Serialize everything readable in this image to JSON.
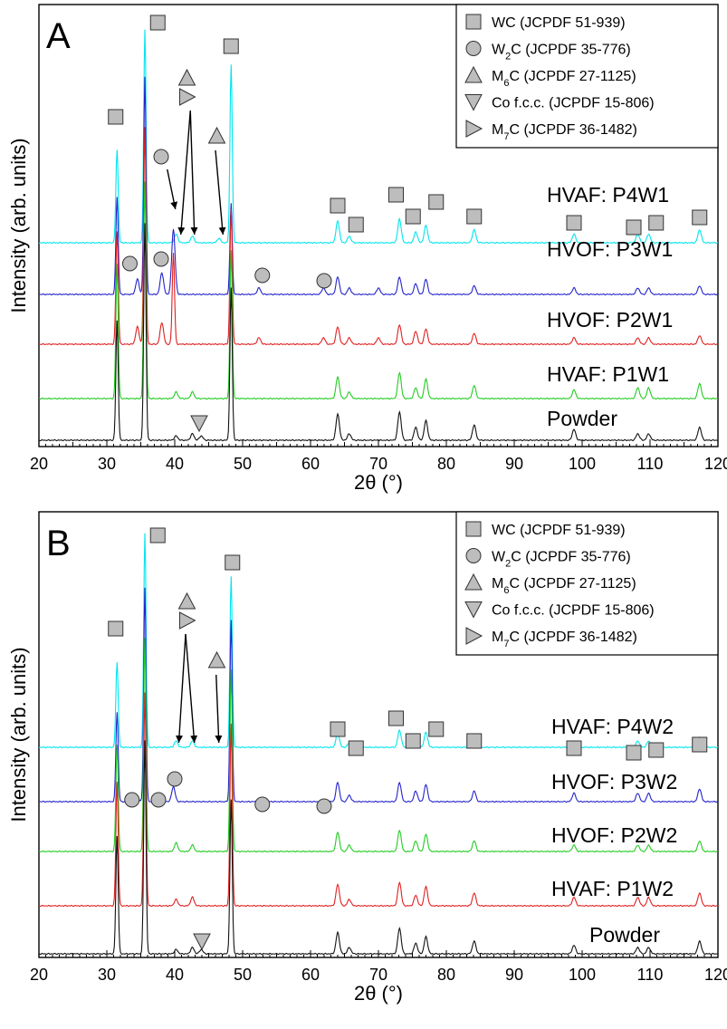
{
  "chart_data": [
    {
      "type": "line",
      "panel_label": "A",
      "xlabel": "2θ (°)",
      "ylabel": "Intensity (arb. units)",
      "xlim": [
        20,
        120
      ],
      "x_ticks": [
        20,
        30,
        40,
        50,
        60,
        70,
        80,
        90,
        100,
        110,
        120
      ],
      "series": [
        {
          "name": "HVAF: P4W1",
          "color": "#00e5ee",
          "peaks": [
            [
              31.5,
              0.43
            ],
            [
              35.6,
              0.98
            ],
            [
              40.2,
              0.04
            ],
            [
              42.6,
              0.03
            ],
            [
              46.5,
              0.02
            ],
            [
              48.3,
              0.82
            ],
            [
              64.0,
              0.1
            ],
            [
              65.7,
              0.03
            ],
            [
              73.1,
              0.11
            ],
            [
              75.5,
              0.05
            ],
            [
              77.0,
              0.08
            ],
            [
              84.1,
              0.06
            ],
            [
              98.8,
              0.04
            ],
            [
              108.2,
              0.04
            ],
            [
              109.8,
              0.04
            ],
            [
              117.3,
              0.06
            ]
          ]
        },
        {
          "name": "HVOF: P3W1",
          "color": "#2323cc",
          "peaks": [
            [
              31.5,
              0.45
            ],
            [
              34.5,
              0.07
            ],
            [
              35.6,
              1.0
            ],
            [
              38.1,
              0.1
            ],
            [
              39.8,
              0.3
            ],
            [
              48.3,
              0.42
            ],
            [
              52.4,
              0.03
            ],
            [
              61.9,
              0.03
            ],
            [
              64.0,
              0.08
            ],
            [
              65.7,
              0.03
            ],
            [
              70.0,
              0.03
            ],
            [
              73.1,
              0.08
            ],
            [
              75.5,
              0.05
            ],
            [
              77.0,
              0.07
            ],
            [
              84.1,
              0.04
            ],
            [
              98.8,
              0.03
            ],
            [
              108.2,
              0.03
            ],
            [
              109.8,
              0.03
            ],
            [
              117.3,
              0.04
            ]
          ]
        },
        {
          "name": "HVOF: P2W1",
          "color": "#e02020",
          "peaks": [
            [
              31.5,
              0.52
            ],
            [
              34.5,
              0.08
            ],
            [
              35.6,
              1.0
            ],
            [
              38.1,
              0.1
            ],
            [
              39.8,
              0.42
            ],
            [
              48.3,
              0.62
            ],
            [
              52.4,
              0.03
            ],
            [
              61.9,
              0.03
            ],
            [
              64.0,
              0.08
            ],
            [
              65.7,
              0.03
            ],
            [
              70.0,
              0.03
            ],
            [
              73.1,
              0.09
            ],
            [
              75.5,
              0.06
            ],
            [
              77.0,
              0.07
            ],
            [
              84.1,
              0.05
            ],
            [
              98.8,
              0.03
            ],
            [
              108.2,
              0.03
            ],
            [
              109.8,
              0.03
            ],
            [
              117.3,
              0.04
            ]
          ]
        },
        {
          "name": "HVAF: P1W1",
          "color": "#22cc22",
          "peaks": [
            [
              31.5,
              0.62
            ],
            [
              35.6,
              1.0
            ],
            [
              40.2,
              0.03
            ],
            [
              42.6,
              0.03
            ],
            [
              48.3,
              0.68
            ],
            [
              64.0,
              0.1
            ],
            [
              65.7,
              0.03
            ],
            [
              73.1,
              0.12
            ],
            [
              75.5,
              0.05
            ],
            [
              77.0,
              0.09
            ],
            [
              84.1,
              0.06
            ],
            [
              98.8,
              0.04
            ],
            [
              108.2,
              0.05
            ],
            [
              109.8,
              0.05
            ],
            [
              117.3,
              0.07
            ]
          ]
        },
        {
          "name": "Powder",
          "color": "#111111",
          "peaks": [
            [
              31.5,
              0.55
            ],
            [
              35.6,
              1.0
            ],
            [
              40.2,
              0.02
            ],
            [
              42.6,
              0.03
            ],
            [
              43.9,
              0.02
            ],
            [
              48.3,
              0.7
            ],
            [
              64.0,
              0.12
            ],
            [
              65.7,
              0.03
            ],
            [
              73.1,
              0.13
            ],
            [
              75.5,
              0.06
            ],
            [
              77.0,
              0.09
            ],
            [
              84.1,
              0.07
            ],
            [
              98.8,
              0.05
            ],
            [
              108.2,
              0.03
            ],
            [
              109.8,
              0.03
            ],
            [
              117.3,
              0.06
            ]
          ]
        }
      ],
      "legend": [
        {
          "symbol": "square",
          "label": "WC",
          "label_sub": "",
          "label_rest": "  (JCPDF 51-939)"
        },
        {
          "symbol": "circle",
          "label": "W",
          "label_sub": "2",
          "label_rest": "C (JCPDF 35-776)"
        },
        {
          "symbol": "triangle-up",
          "label": "M",
          "label_sub": "6",
          "label_rest": "C (JCPDF 27-1125)"
        },
        {
          "symbol": "triangle-down",
          "label": "Co f.c.c. (JCPDF 15-806)",
          "label_sub": "",
          "label_rest": ""
        },
        {
          "symbol": "triangle-right",
          "label": "M",
          "label_sub": "7",
          "label_rest": "C (JCPDF 36-1482)"
        }
      ],
      "legend_position": "top-right"
    },
    {
      "type": "line",
      "panel_label": "B",
      "xlabel": "2θ (°)",
      "ylabel": "Intensity (arb. units)",
      "xlim": [
        20,
        120
      ],
      "x_ticks": [
        20,
        30,
        40,
        50,
        60,
        70,
        80,
        90,
        100,
        110,
        120
      ],
      "series": [
        {
          "name": "HVAF: P4W2",
          "color": "#00e5ee",
          "peaks": [
            [
              31.5,
              0.4
            ],
            [
              35.6,
              1.0
            ],
            [
              40.2,
              0.03
            ],
            [
              42.6,
              0.03
            ],
            [
              48.3,
              0.8
            ],
            [
              64.0,
              0.07
            ],
            [
              65.7,
              0.02
            ],
            [
              73.1,
              0.08
            ],
            [
              75.5,
              0.04
            ],
            [
              77.0,
              0.07
            ],
            [
              84.1,
              0.04
            ],
            [
              98.8,
              0.02
            ],
            [
              108.2,
              0.03
            ],
            [
              109.8,
              0.03
            ],
            [
              117.3,
              0.05
            ]
          ]
        },
        {
          "name": "HVOF: P3W2",
          "color": "#2323cc",
          "peaks": [
            [
              31.5,
              0.42
            ],
            [
              34.5,
              0.02
            ],
            [
              35.6,
              1.0
            ],
            [
              38.1,
              0.03
            ],
            [
              39.8,
              0.07
            ],
            [
              48.3,
              0.85
            ],
            [
              64.0,
              0.09
            ],
            [
              65.7,
              0.03
            ],
            [
              73.1,
              0.09
            ],
            [
              75.5,
              0.05
            ],
            [
              77.0,
              0.08
            ],
            [
              84.1,
              0.05
            ],
            [
              98.8,
              0.04
            ],
            [
              108.2,
              0.04
            ],
            [
              109.8,
              0.04
            ],
            [
              117.3,
              0.06
            ]
          ]
        },
        {
          "name": "HVOF: P2W2",
          "color": "#22cc22",
          "peaks": [
            [
              31.5,
              0.5
            ],
            [
              35.6,
              1.0
            ],
            [
              40.2,
              0.04
            ],
            [
              42.6,
              0.03
            ],
            [
              48.3,
              0.85
            ],
            [
              64.0,
              0.09
            ],
            [
              65.7,
              0.03
            ],
            [
              73.1,
              0.1
            ],
            [
              75.5,
              0.05
            ],
            [
              77.0,
              0.08
            ],
            [
              84.1,
              0.05
            ],
            [
              98.8,
              0.03
            ],
            [
              108.2,
              0.03
            ],
            [
              109.8,
              0.03
            ],
            [
              117.3,
              0.05
            ]
          ]
        },
        {
          "name": "HVAF: P1W2",
          "color": "#e02020",
          "peaks": [
            [
              31.5,
              0.58
            ],
            [
              35.6,
              1.0
            ],
            [
              40.2,
              0.03
            ],
            [
              42.6,
              0.04
            ],
            [
              48.3,
              0.85
            ],
            [
              64.0,
              0.1
            ],
            [
              65.7,
              0.03
            ],
            [
              73.1,
              0.11
            ],
            [
              75.5,
              0.05
            ],
            [
              77.0,
              0.09
            ],
            [
              84.1,
              0.06
            ],
            [
              98.8,
              0.04
            ],
            [
              108.2,
              0.04
            ],
            [
              109.8,
              0.04
            ],
            [
              117.3,
              0.06
            ]
          ]
        },
        {
          "name": "Powder",
          "color": "#111111",
          "peaks": [
            [
              31.5,
              0.55
            ],
            [
              35.6,
              1.0
            ],
            [
              40.2,
              0.02
            ],
            [
              42.6,
              0.03
            ],
            [
              43.9,
              0.02
            ],
            [
              48.3,
              0.72
            ],
            [
              64.0,
              0.1
            ],
            [
              65.7,
              0.03
            ],
            [
              73.1,
              0.12
            ],
            [
              75.5,
              0.05
            ],
            [
              77.0,
              0.08
            ],
            [
              84.1,
              0.06
            ],
            [
              98.8,
              0.04
            ],
            [
              108.2,
              0.03
            ],
            [
              109.8,
              0.03
            ],
            [
              117.3,
              0.06
            ]
          ]
        }
      ],
      "legend": [
        {
          "symbol": "square",
          "label": "WC",
          "label_sub": "",
          "label_rest": "  (JCPDF 51-939)"
        },
        {
          "symbol": "circle",
          "label": "W",
          "label_sub": "2",
          "label_rest": "C (JCPDF 35-776)"
        },
        {
          "symbol": "triangle-up",
          "label": "M",
          "label_sub": "6",
          "label_rest": "C (JCPDF 27-1125)"
        },
        {
          "symbol": "triangle-down",
          "label": "Co f.c.c. (JCPDF 15-806)",
          "label_sub": "",
          "label_rest": ""
        },
        {
          "symbol": "triangle-right",
          "label": "M",
          "label_sub": "7",
          "label_rest": "C (JCPDF 36-1482)"
        }
      ],
      "legend_position": "top-right"
    }
  ]
}
